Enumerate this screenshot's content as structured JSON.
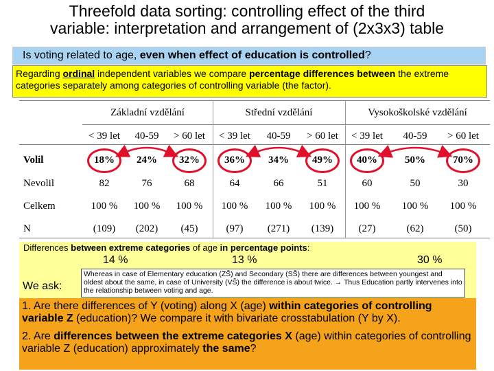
{
  "title": {
    "line1": "Threefold data sorting: controlling effect of the third",
    "line2": "variable: interpretation and arrangement of (2x3x3) table"
  },
  "question": {
    "pre": "Is voting related to age, ",
    "bold": "even when effect of education is controlled",
    "post": "?"
  },
  "note": {
    "p1": "Regarding ",
    "p2": "ordinal",
    "p3": " independent variables we compare ",
    "p4": "percentage differences between",
    "p5": " the extreme categories separately among categories of controlling variable (the factor)."
  },
  "table": {
    "groups": [
      "Základní vzdělání",
      "Střední vzdělání",
      "Vysokoškolské vzdělání"
    ],
    "age_labels": [
      "< 39 let",
      "40-59",
      "> 60 let",
      "< 39 let",
      "40-59",
      "> 60 let",
      "< 39 let",
      "40-59",
      "> 60 let"
    ],
    "rows": [
      {
        "label": "Volil",
        "values": [
          "18%",
          "24%",
          "32%",
          "36%",
          "34%",
          "49%",
          "40%",
          "50%",
          "70%"
        ]
      },
      {
        "label": "Nevolil",
        "values": [
          "82",
          "76",
          "68",
          "64",
          "66",
          "51",
          "60",
          "50",
          "30"
        ]
      },
      {
        "label": "Celkem",
        "values": [
          "100 %",
          "100 %",
          "100 %",
          "100 %",
          "100 %",
          "100 %",
          "100 %",
          "100 %",
          "100 %"
        ]
      },
      {
        "label": "N",
        "values": [
          "(109)",
          "(202)",
          "(45)",
          "(97)",
          "(271)",
          "(139)",
          "(27)",
          "(62)",
          "(50)"
        ]
      }
    ]
  },
  "differences": {
    "pre": "Differences ",
    "bold": "between extreme categories",
    "mid": " of age ",
    "bold2": "in percentage points",
    "post": ":",
    "values": [
      "14 %",
      "13 %",
      "30 %"
    ]
  },
  "ask": {
    "label": "We ask:"
  },
  "interpretation": "Whereas in case of  Elementary education (ZŠ) and Secondary (SŠ) there are differences between youngest and oldest about the same, in case of University (VŠ) the difference is about twice. → Thus Education partly intervenes into the relationship between voting and age.",
  "questions": {
    "q1a": "1. Are there differences of Y (voting) along X (age) ",
    "q1b": "within categories of controlling variable Z",
    "q1c": " (education)? We compare it with bivariate crosstabulation (Y by X).",
    "q2a": "2. Are ",
    "q2b": "differences between the extreme categories X",
    "q2c": " (age) within categories of controlling variable Z (education) approximately ",
    "q2d": "the same",
    "q2e": "?"
  },
  "colors": {
    "question_bg": "#a9d3f2",
    "note_bg": "#ffff00",
    "diff_bg": "#ffff99",
    "question_box_bg": "#f5a31a",
    "oval": "#e0102a"
  }
}
